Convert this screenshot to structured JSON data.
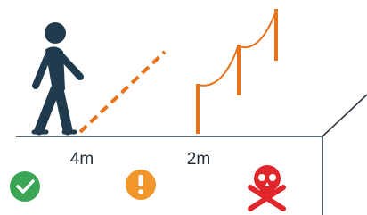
{
  "distances": [
    "4m",
    "2m"
  ]
}
